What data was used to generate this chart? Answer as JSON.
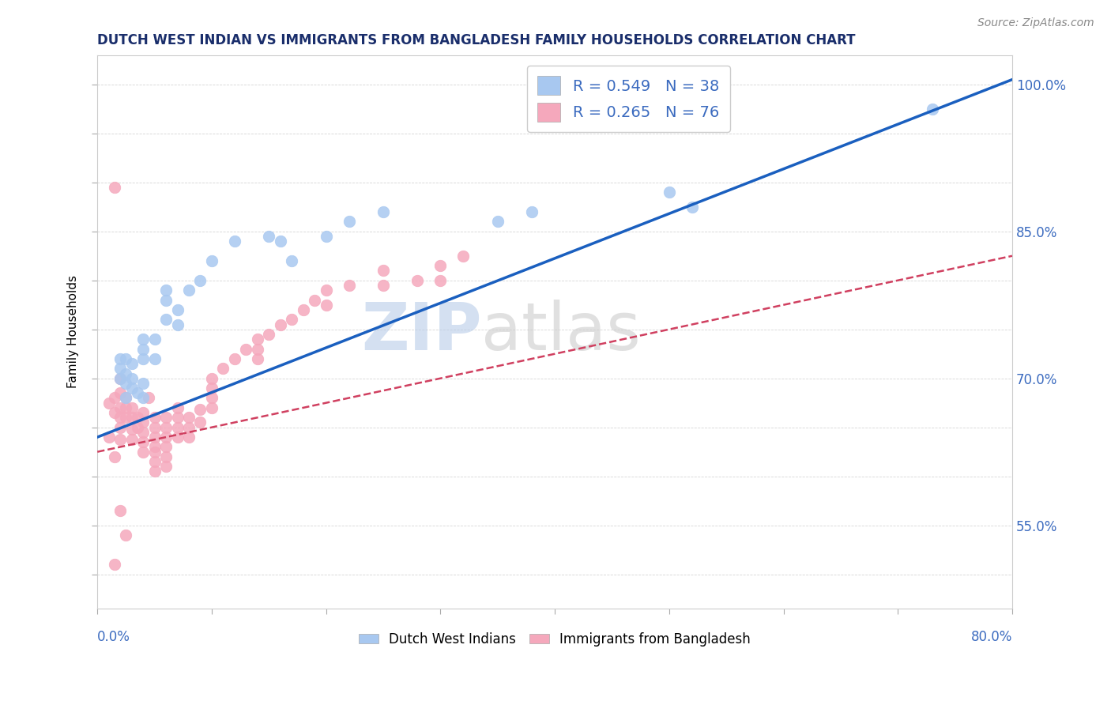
{
  "title": "DUTCH WEST INDIAN VS IMMIGRANTS FROM BANGLADESH FAMILY HOUSEHOLDS CORRELATION CHART",
  "source": "Source: ZipAtlas.com",
  "ylabel": "Family Households",
  "xlim": [
    0.0,
    0.8
  ],
  "ylim": [
    0.465,
    1.03
  ],
  "r_blue": "0.549",
  "n_blue": "38",
  "r_pink": "0.265",
  "n_pink": "76",
  "blue_color": "#a8c8f0",
  "pink_color": "#f5a8bc",
  "trend_blue_color": "#1a5fbf",
  "trend_pink_color": "#d04060",
  "legend_label_blue": "Dutch West Indians",
  "legend_label_pink": "Immigrants from Bangladesh",
  "title_color": "#1a2e6b",
  "axis_label_color": "#3a6abf",
  "right_ytick_labels": [
    "55.0%",
    "70.0%",
    "85.0%",
    "100.0%"
  ],
  "right_ytick_values": [
    0.55,
    0.7,
    0.85,
    1.0
  ],
  "blue_trend_x0": 0.0,
  "blue_trend_y0": 0.64,
  "blue_trend_x1": 0.8,
  "blue_trend_y1": 1.005,
  "pink_trend_x0": 0.0,
  "pink_trend_y0": 0.625,
  "pink_trend_x1": 0.8,
  "pink_trend_y1": 0.825,
  "blue_scatter_x": [
    0.025,
    0.02,
    0.02,
    0.02,
    0.025,
    0.025,
    0.025,
    0.03,
    0.03,
    0.03,
    0.035,
    0.04,
    0.04,
    0.04,
    0.04,
    0.04,
    0.05,
    0.05,
    0.06,
    0.06,
    0.06,
    0.07,
    0.07,
    0.08,
    0.09,
    0.1,
    0.12,
    0.15,
    0.16,
    0.17,
    0.2,
    0.22,
    0.25,
    0.35,
    0.38,
    0.5,
    0.52,
    0.73
  ],
  "blue_scatter_y": [
    0.68,
    0.72,
    0.71,
    0.7,
    0.695,
    0.705,
    0.72,
    0.715,
    0.7,
    0.69,
    0.685,
    0.68,
    0.72,
    0.73,
    0.74,
    0.695,
    0.74,
    0.72,
    0.76,
    0.78,
    0.79,
    0.77,
    0.755,
    0.79,
    0.8,
    0.82,
    0.84,
    0.845,
    0.84,
    0.82,
    0.845,
    0.86,
    0.87,
    0.86,
    0.87,
    0.89,
    0.875,
    0.975
  ],
  "pink_scatter_x": [
    0.01,
    0.01,
    0.015,
    0.015,
    0.015,
    0.02,
    0.02,
    0.02,
    0.02,
    0.02,
    0.02,
    0.025,
    0.025,
    0.025,
    0.03,
    0.03,
    0.03,
    0.03,
    0.035,
    0.035,
    0.04,
    0.04,
    0.04,
    0.04,
    0.04,
    0.045,
    0.05,
    0.05,
    0.05,
    0.05,
    0.05,
    0.05,
    0.05,
    0.06,
    0.06,
    0.06,
    0.06,
    0.06,
    0.06,
    0.07,
    0.07,
    0.07,
    0.07,
    0.08,
    0.08,
    0.08,
    0.09,
    0.09,
    0.1,
    0.1,
    0.1,
    0.1,
    0.11,
    0.12,
    0.13,
    0.14,
    0.14,
    0.14,
    0.15,
    0.16,
    0.17,
    0.18,
    0.19,
    0.2,
    0.2,
    0.22,
    0.25,
    0.25,
    0.28,
    0.3,
    0.3,
    0.32,
    0.015,
    0.015,
    0.02,
    0.025
  ],
  "pink_scatter_y": [
    0.675,
    0.64,
    0.68,
    0.665,
    0.62,
    0.7,
    0.685,
    0.67,
    0.66,
    0.65,
    0.638,
    0.68,
    0.67,
    0.66,
    0.67,
    0.66,
    0.648,
    0.638,
    0.66,
    0.65,
    0.665,
    0.655,
    0.645,
    0.635,
    0.625,
    0.68,
    0.66,
    0.65,
    0.64,
    0.63,
    0.625,
    0.615,
    0.605,
    0.66,
    0.65,
    0.64,
    0.63,
    0.62,
    0.61,
    0.67,
    0.66,
    0.65,
    0.64,
    0.66,
    0.65,
    0.64,
    0.668,
    0.655,
    0.7,
    0.69,
    0.68,
    0.67,
    0.71,
    0.72,
    0.73,
    0.74,
    0.72,
    0.73,
    0.745,
    0.755,
    0.76,
    0.77,
    0.78,
    0.79,
    0.775,
    0.795,
    0.81,
    0.795,
    0.8,
    0.815,
    0.8,
    0.825,
    0.895,
    0.51,
    0.565,
    0.54
  ]
}
